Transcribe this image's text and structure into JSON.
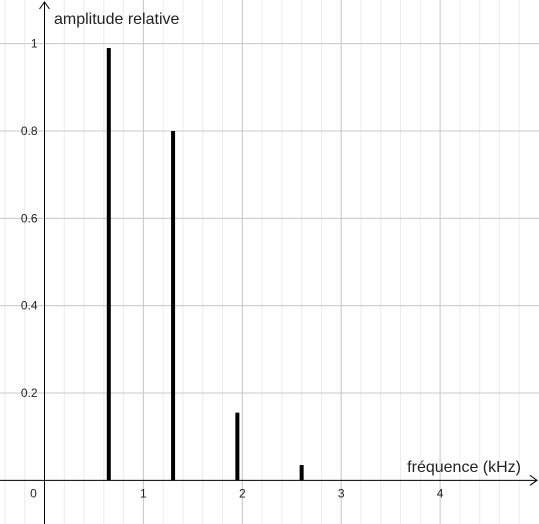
{
  "chart_data": {
    "type": "bar",
    "xlabel": "fréquence (kHz)",
    "ylabel": "amplitude relative",
    "x": [
      0.65,
      1.3,
      1.95,
      2.6
    ],
    "values": [
      0.99,
      0.8,
      0.155,
      0.035
    ],
    "xlim": [
      -0.45,
      5.0
    ],
    "ylim": [
      -0.1,
      1.1
    ],
    "x_ticks": [
      1,
      2,
      3,
      4
    ],
    "x_tick_labels": [
      "1",
      "2",
      "3",
      "4"
    ],
    "y_ticks": [
      0.2,
      0.4,
      0.6,
      0.8,
      1
    ],
    "y_tick_labels": [
      "0.2",
      "0.4",
      "0.6",
      "0.8",
      "1"
    ],
    "origin_label": "0",
    "grid": true,
    "minor_grid_step": 0.2,
    "colors": {
      "bars": "#000000",
      "axes": "#000000",
      "major_grid": "#c8c8c8",
      "minor_grid": "#ececec"
    }
  }
}
